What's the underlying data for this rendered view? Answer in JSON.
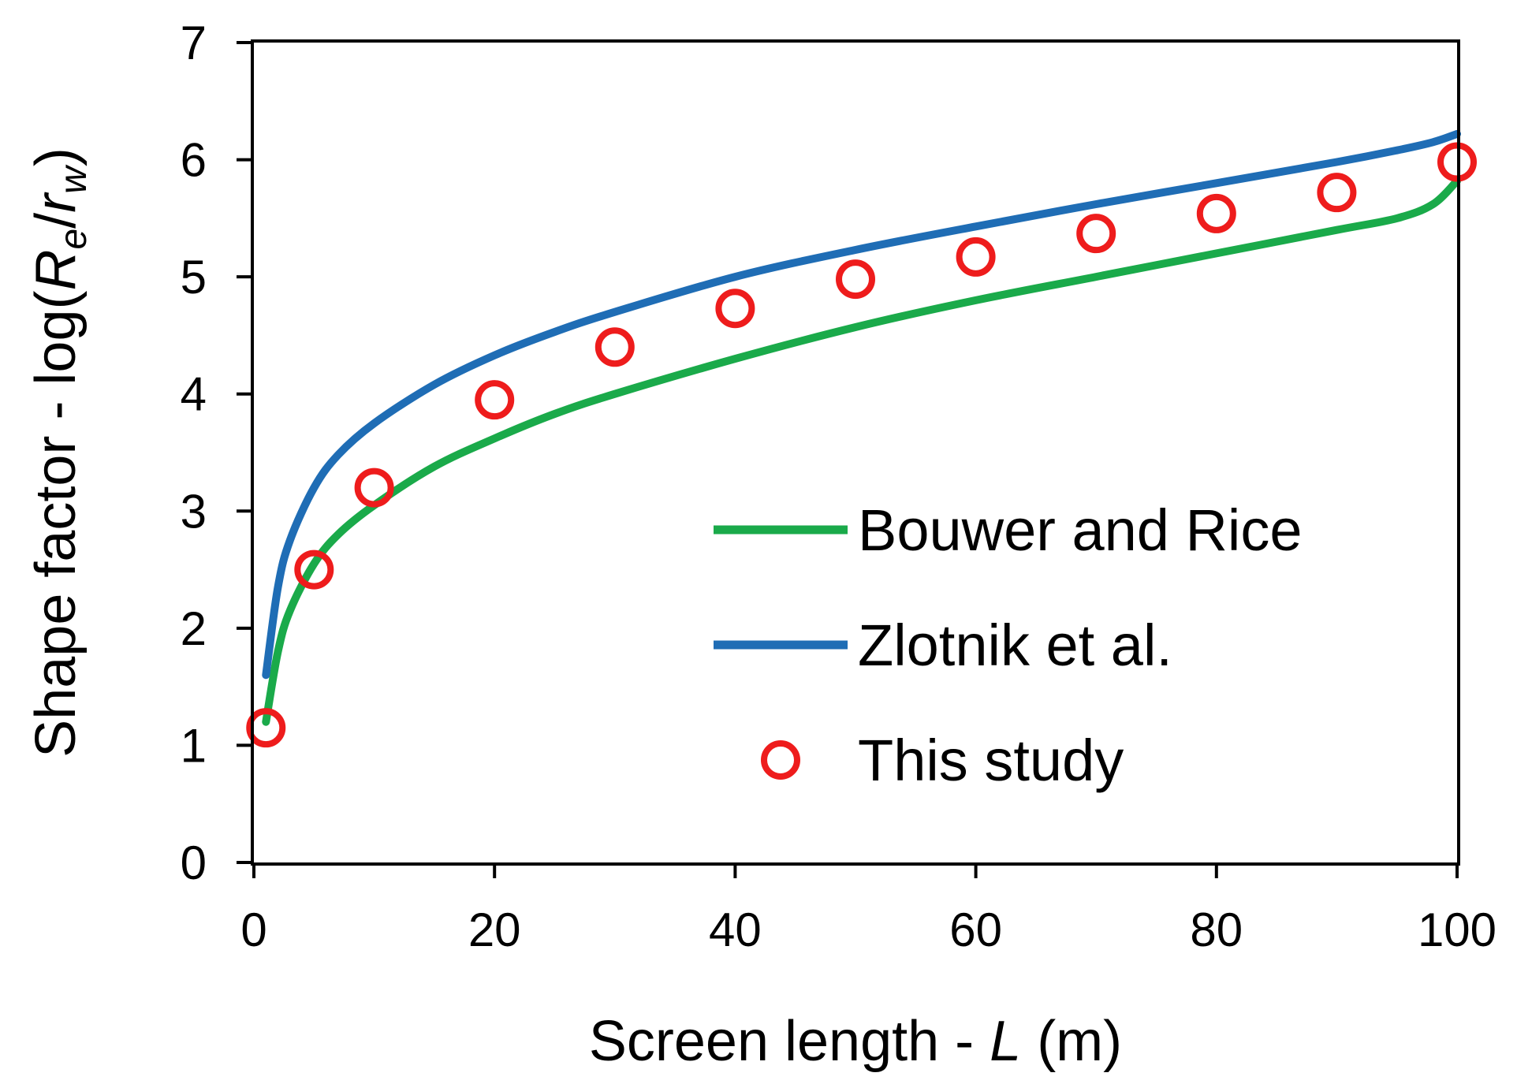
{
  "chart_data": {
    "type": "line",
    "xlabel": {
      "prefix": "Screen length - ",
      "italic": "L",
      "suffix": " (m)"
    },
    "ylabel": {
      "prefix": "Shape factor - log(",
      "r1": "R",
      "s1": "e",
      "slash": "/",
      "r2": "r",
      "s2": "w",
      "suffix": ")"
    },
    "xlim": [
      0,
      100
    ],
    "ylim": [
      0,
      7
    ],
    "xticks": [
      0,
      20,
      40,
      60,
      80,
      100
    ],
    "yticks": [
      0,
      1,
      2,
      3,
      4,
      5,
      6,
      7
    ],
    "grid": false,
    "legend_position": "center-right",
    "series": [
      {
        "name": "Bouwer and Rice",
        "style": "line",
        "color": "#1aaa4a",
        "x": [
          1,
          2,
          3,
          5,
          7,
          10,
          15,
          20,
          25,
          30,
          40,
          50,
          60,
          70,
          80,
          90,
          95,
          98,
          100
        ],
        "y": [
          1.2,
          1.8,
          2.15,
          2.55,
          2.8,
          3.05,
          3.38,
          3.62,
          3.83,
          4.0,
          4.3,
          4.57,
          4.8,
          5.0,
          5.2,
          5.4,
          5.5,
          5.62,
          5.82
        ]
      },
      {
        "name": "Zlotnik et al.",
        "style": "line",
        "color": "#1f6db5",
        "x": [
          1,
          2,
          3,
          5,
          7,
          10,
          15,
          20,
          25,
          30,
          40,
          50,
          60,
          70,
          80,
          90,
          95,
          98,
          100
        ],
        "y": [
          1.6,
          2.35,
          2.75,
          3.2,
          3.48,
          3.75,
          4.08,
          4.33,
          4.53,
          4.7,
          5.0,
          5.23,
          5.43,
          5.62,
          5.8,
          5.98,
          6.08,
          6.15,
          6.22
        ]
      },
      {
        "name": "This study",
        "style": "marker",
        "color": "#ee1c1c",
        "x": [
          1,
          5,
          10,
          20,
          30,
          40,
          50,
          60,
          70,
          80,
          90,
          100
        ],
        "y": [
          1.15,
          2.5,
          3.2,
          3.95,
          4.4,
          4.73,
          4.98,
          5.17,
          5.37,
          5.54,
          5.72,
          5.98
        ]
      }
    ]
  }
}
